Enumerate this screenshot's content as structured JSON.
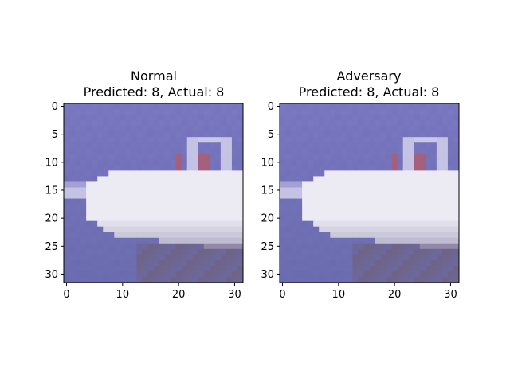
{
  "panels": [
    {
      "title_line1": "Normal",
      "title_line2": "Predicted: 8, Actual: 8"
    },
    {
      "title_line1": "Adversary",
      "title_line2": "Predicted: 8, Actual: 8"
    }
  ],
  "image": {
    "description_colors": {
      "water": "#6c6cb0",
      "sky": "#7a78c2",
      "hull_white": "#ecebf4",
      "hull_shadow": "#a9a4c0",
      "cabin_dark": "#3a3458",
      "accent_red": "#a4607c"
    }
  },
  "axes": {
    "x_ticks": [
      "0",
      "10",
      "20",
      "30"
    ],
    "y_ticks": [
      "0",
      "5",
      "10",
      "15",
      "20",
      "25",
      "30"
    ]
  }
}
